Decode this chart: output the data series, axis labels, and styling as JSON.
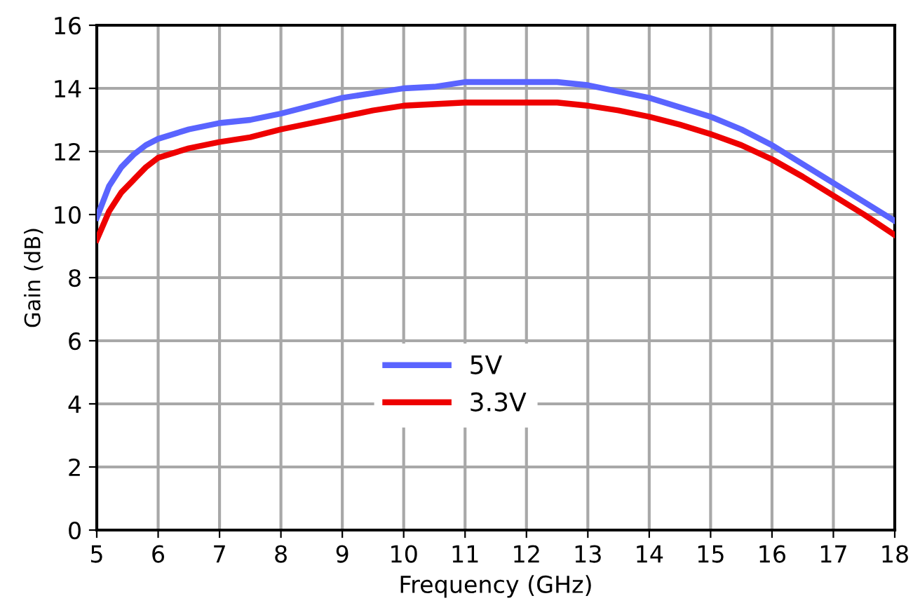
{
  "chart_data": {
    "type": "line",
    "xlabel": "Frequency (GHz)",
    "ylabel": "Gain (dB)",
    "xlim": [
      5,
      18
    ],
    "xticks": [
      5,
      6,
      7,
      8,
      9,
      10,
      11,
      12,
      13,
      14,
      15,
      16,
      17,
      18
    ],
    "ylim": [
      0,
      16
    ],
    "yticks": [
      0,
      2,
      4,
      6,
      8,
      10,
      12,
      14,
      16
    ],
    "grid": true,
    "legend": "bottom",
    "marker": "none",
    "line_style": "solid",
    "series": [
      {
        "name": "5V",
        "color": "#5a64ff",
        "x": [
          5.0,
          5.2,
          5.4,
          5.6,
          5.8,
          6,
          6.5,
          7,
          7.5,
          8,
          8.5,
          9,
          9.5,
          10,
          10.5,
          11,
          12,
          12.5,
          13,
          13.5,
          14,
          14.5,
          15,
          15.5,
          16,
          16.5,
          17,
          17.5,
          18
        ],
        "values": [
          9.9,
          10.9,
          11.5,
          11.9,
          12.2,
          12.4,
          12.7,
          12.9,
          13.0,
          13.2,
          13.45,
          13.7,
          13.85,
          14.0,
          14.05,
          14.2,
          14.2,
          14.2,
          14.1,
          13.9,
          13.7,
          13.4,
          13.1,
          12.7,
          12.2,
          11.6,
          11.0,
          10.4,
          9.8
        ]
      },
      {
        "name": "3.3V",
        "color": "#ee0000",
        "x": [
          5.0,
          5.2,
          5.4,
          5.6,
          5.8,
          6,
          6.5,
          7,
          7.5,
          8,
          8.5,
          9,
          9.5,
          10,
          10.5,
          11,
          12,
          12.5,
          13,
          13.5,
          14,
          14.5,
          15,
          15.5,
          16,
          16.5,
          17,
          17.5,
          18
        ],
        "values": [
          9.2,
          10.1,
          10.7,
          11.1,
          11.5,
          11.8,
          12.1,
          12.3,
          12.45,
          12.7,
          12.9,
          13.1,
          13.3,
          13.45,
          13.5,
          13.55,
          13.55,
          13.55,
          13.45,
          13.3,
          13.1,
          12.85,
          12.55,
          12.2,
          11.75,
          11.2,
          10.6,
          10.0,
          9.35
        ]
      }
    ]
  }
}
